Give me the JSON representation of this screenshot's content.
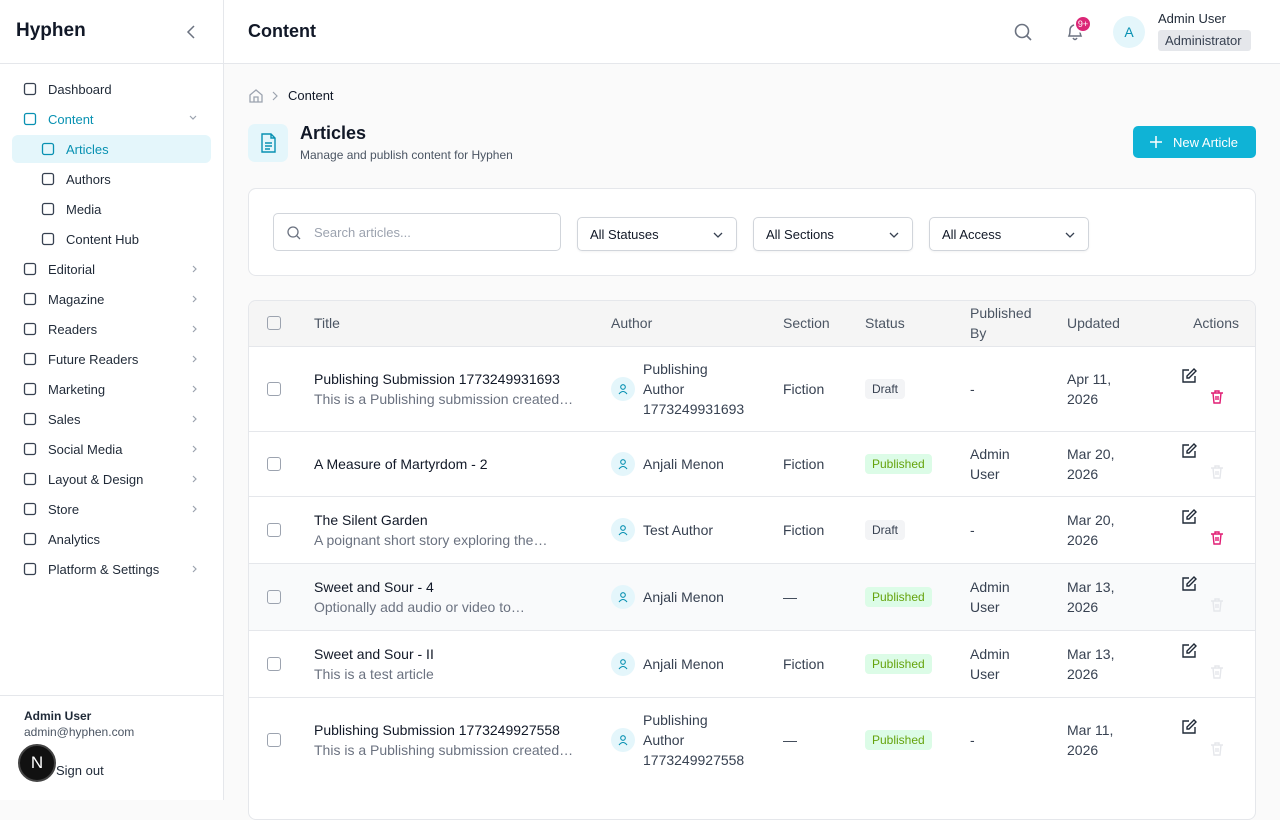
{
  "sidebar": {
    "brand": "Hyphen",
    "nav": [
      {
        "label": "Dashboard"
      },
      {
        "label": "Content",
        "active": true,
        "children": [
          {
            "label": "Articles",
            "active": true
          },
          {
            "label": "Authors"
          },
          {
            "label": "Media"
          },
          {
            "label": "Content Hub"
          }
        ]
      },
      {
        "label": "Editorial",
        "has_submenu": true
      },
      {
        "label": "Magazine",
        "has_submenu": true
      },
      {
        "label": "Readers",
        "has_submenu": true
      },
      {
        "label": "Future Readers",
        "has_submenu": true
      },
      {
        "label": "Marketing",
        "has_submenu": true
      },
      {
        "label": "Sales",
        "has_submenu": true
      },
      {
        "label": "Social Media",
        "has_submenu": true
      },
      {
        "label": "Layout & Design",
        "has_submenu": true
      },
      {
        "label": "Store",
        "has_submenu": true
      },
      {
        "label": "Analytics"
      },
      {
        "label": "Platform & Settings",
        "has_submenu": true
      }
    ],
    "user_name": "Admin User",
    "user_email": "admin@hyphen.com",
    "sign_out": "Sign out",
    "dev_badge": "N"
  },
  "header": {
    "title": "Content",
    "notification_badge": "9+",
    "avatar": "A",
    "user_name": "Admin User",
    "user_role": "Administrator"
  },
  "breadcrumb": "Content",
  "page": {
    "title": "Articles",
    "subtitle": "Manage and publish content for Hyphen",
    "new_button": "New Article"
  },
  "filters": {
    "search_placeholder": "Search articles...",
    "selects": [
      "All Statuses",
      "All Sections",
      "All Access"
    ]
  },
  "table": {
    "columns": [
      "Title",
      "Author",
      "Section",
      "Status",
      "Published By",
      "Updated",
      "Actions"
    ],
    "rows": [
      {
        "title": "Publishing Submission 1773249931693",
        "description": "This is a Publishing submission created…",
        "author": "Publishing Author 1773249931693",
        "section": "Fiction",
        "status": "Draft",
        "published_by": "-",
        "updated": "Apr 11, 2026"
      },
      {
        "title": "A Measure of Martyrdom - 2",
        "author": "Anjali Menon",
        "section": "Fiction",
        "status": "Published",
        "published_by": "Admin User",
        "updated": "Mar 20, 2026"
      },
      {
        "title": "The Silent Garden",
        "description": "A poignant short story exploring the…",
        "author": "Test Author",
        "section": "Fiction",
        "status": "Draft",
        "published_by": "-",
        "updated": "Mar 20, 2026"
      },
      {
        "title": "Sweet and Sour - 4",
        "description": "Optionally add audio or video to…",
        "author": "Anjali Menon",
        "section": "—",
        "status": "Published",
        "published_by": "Admin User",
        "updated": "Mar 13, 2026",
        "hover": true
      },
      {
        "title": "Sweet and Sour - II",
        "description": "This is a test article",
        "author": "Anjali Menon",
        "section": "Fiction",
        "status": "Published",
        "published_by": "Admin User",
        "updated": "Mar 13, 2026"
      },
      {
        "title": "Publishing Submission 1773249927558",
        "description": "This is a Publishing submission created…",
        "author": "Publishing Author 1773249927558",
        "section": "—",
        "status": "Published",
        "published_by": "-",
        "updated": "Mar 11, 2026"
      }
    ]
  }
}
